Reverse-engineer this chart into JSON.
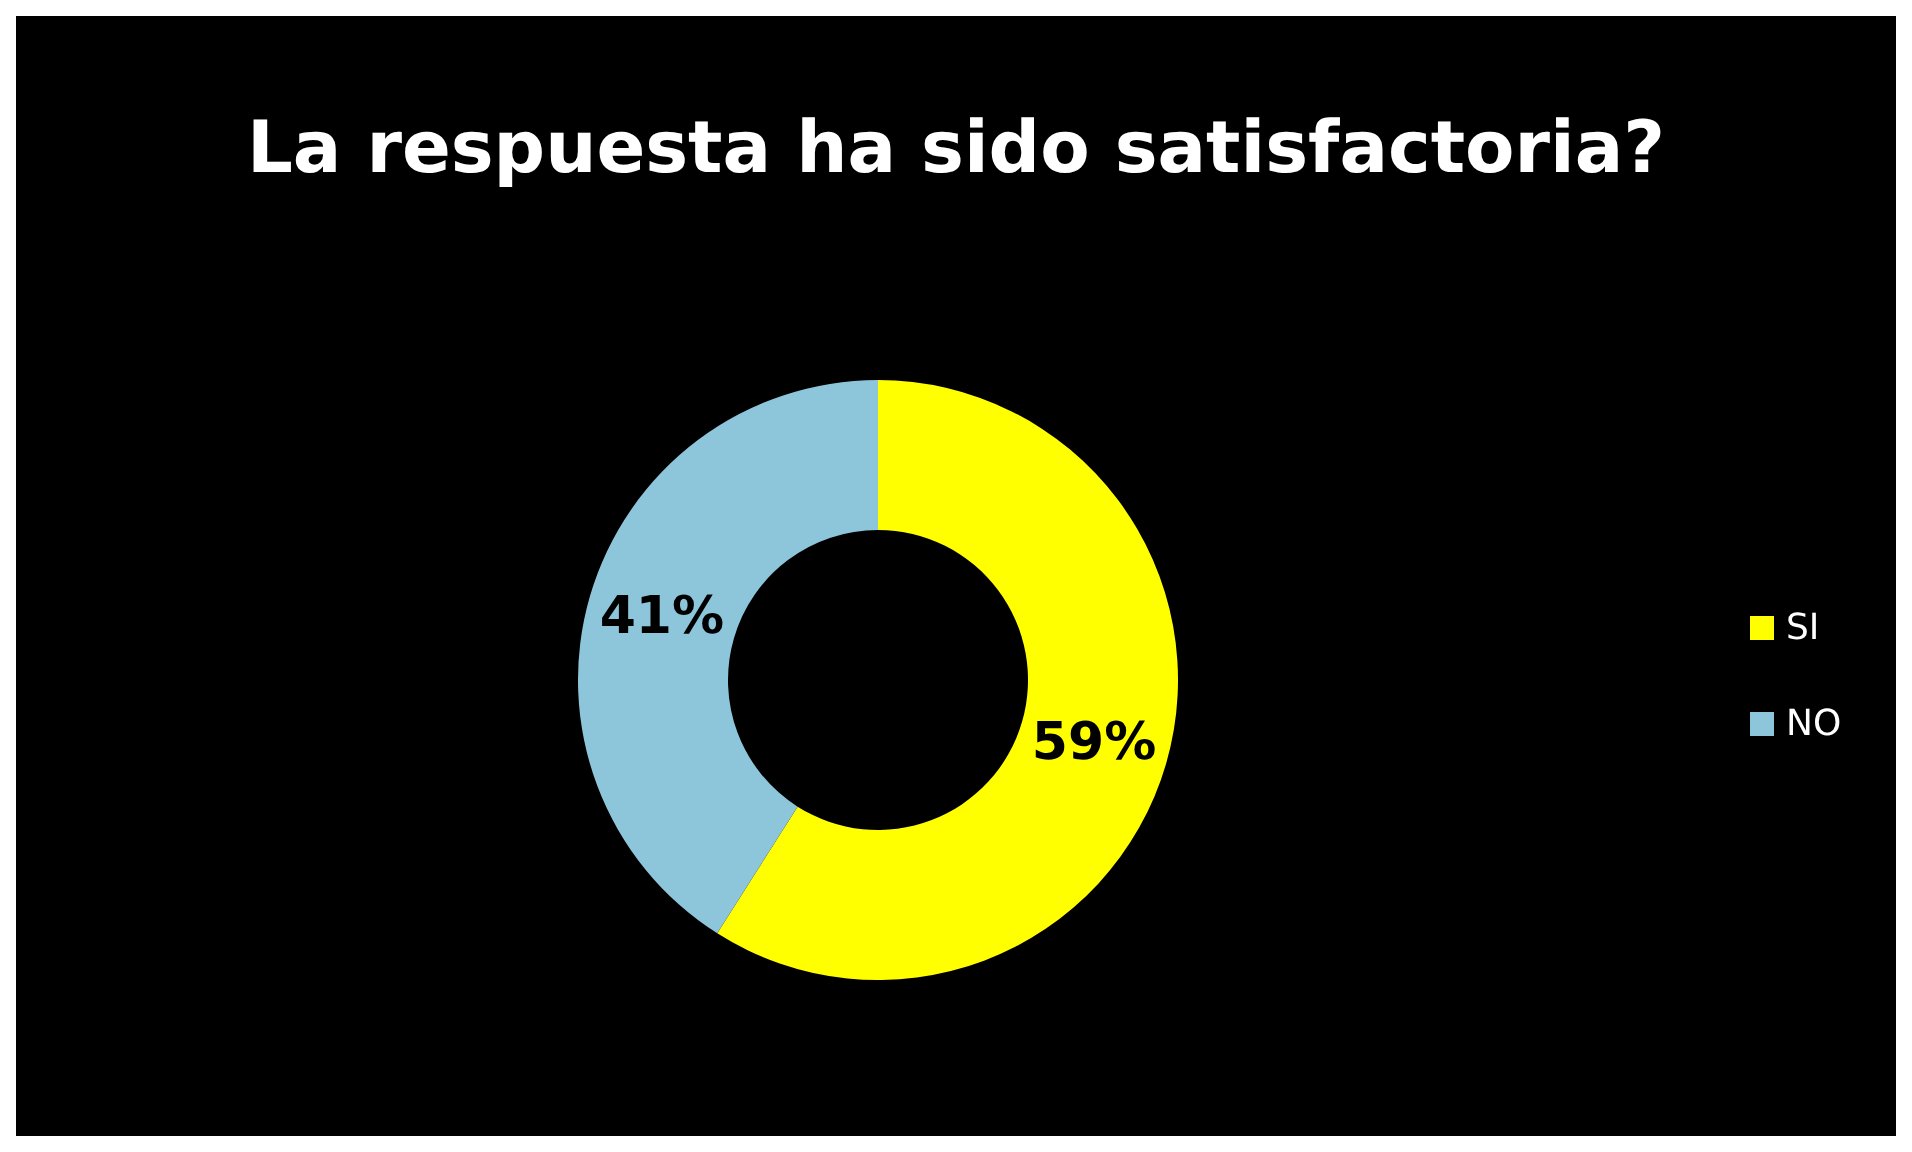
{
  "chart_data": {
    "type": "donut",
    "title": "La respuesta ha sido satisfactoria?",
    "categories": [
      "SI",
      "NO"
    ],
    "values": [
      59,
      41
    ],
    "colors": [
      "#ffff00",
      "#8dc6da"
    ],
    "value_labels": [
      "59%",
      "41%"
    ],
    "legend": "right"
  }
}
